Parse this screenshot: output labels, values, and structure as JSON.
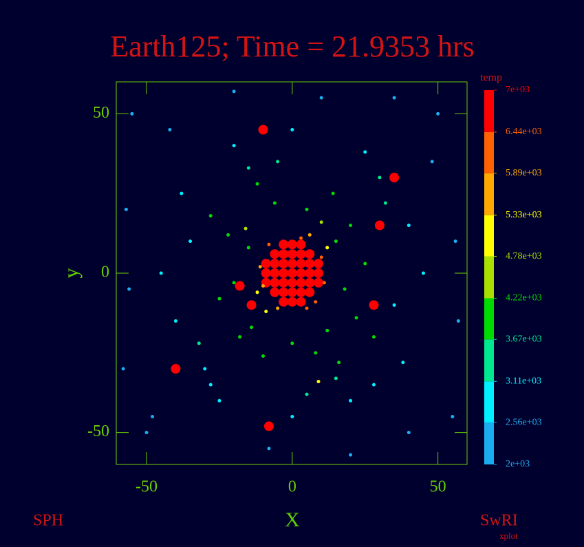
{
  "chart_data": {
    "type": "scatter",
    "title": "Earth125; Time = 21.9353 hrs",
    "x_label": "X",
    "y_label": "y",
    "footer_left": "SPH",
    "footer_right": "SwRI",
    "footer_right_sub": "xplot",
    "colorbar_label": "temp",
    "xlim": [
      -60.4,
      60
    ],
    "ylim": [
      -60,
      60
    ],
    "xticks": [
      -50,
      0,
      50
    ],
    "yticks": [
      -50,
      0,
      50
    ],
    "clim": [
      2000,
      7000
    ],
    "cticks": [
      {
        "value": 7000,
        "label": "7e+03"
      },
      {
        "value": 6440,
        "label": "6.44e+03"
      },
      {
        "value": 5890,
        "label": "5.89e+03"
      },
      {
        "value": 5330,
        "label": "5.33e+03"
      },
      {
        "value": 4780,
        "label": "4.78e+03"
      },
      {
        "value": 4220,
        "label": "4.22e+03"
      },
      {
        "value": 3670,
        "label": "3.67e+03"
      },
      {
        "value": 3110,
        "label": "3.11e+03"
      },
      {
        "value": 2560,
        "label": "2.56e+03"
      },
      {
        "value": 2000,
        "label": "2e+03"
      }
    ],
    "colormap": [
      "#1aaef0",
      "#00f0ff",
      "#00e890",
      "#00dc00",
      "#a8e000",
      "#ffff00",
      "#ffa800",
      "#ff6000",
      "#ff0000"
    ],
    "x": [
      -9,
      -9,
      -9,
      -6,
      -6,
      -6,
      -6,
      -6,
      -3,
      -3,
      -3,
      -3,
      -3,
      -3,
      -3,
      0,
      0,
      0,
      0,
      0,
      0,
      0,
      3,
      3,
      3,
      3,
      3,
      3,
      3,
      6,
      6,
      6,
      6,
      6,
      9,
      9,
      9,
      10,
      -10,
      11,
      -11,
      5,
      -5,
      8,
      -8,
      3,
      -12,
      12,
      -9,
      6,
      15,
      -15,
      18,
      -20,
      12,
      -14,
      5,
      -6,
      20,
      -22,
      22,
      -18,
      0,
      8,
      -25,
      25,
      14,
      -12,
      -10,
      16,
      -28,
      28,
      10,
      -16,
      30,
      -30,
      35,
      -35,
      -5,
      5,
      40,
      -40,
      20,
      -20,
      -38,
      38,
      25,
      -25,
      45,
      -45,
      0,
      0,
      -32,
      32,
      15,
      -15,
      -28,
      28,
      -55,
      55,
      -50,
      50,
      -57,
      57,
      -20,
      20,
      -58,
      48,
      -42,
      40,
      10,
      -8,
      56,
      -56,
      -48,
      35,
      -14,
      -8,
      -40,
      35,
      -18,
      30,
      -10,
      28,
      9
    ],
    "y": [
      -3,
      0,
      3,
      -6,
      -3,
      0,
      3,
      6,
      -9,
      -6,
      -3,
      0,
      3,
      6,
      9,
      -9,
      -6,
      -3,
      0,
      3,
      6,
      9,
      -9,
      -6,
      -3,
      0,
      3,
      6,
      9,
      -6,
      -3,
      0,
      3,
      6,
      -3,
      0,
      3,
      5,
      -4,
      -3,
      2,
      -11,
      -11,
      -9,
      9,
      11,
      -6,
      8,
      -12,
      12,
      10,
      8,
      -5,
      -3,
      -18,
      -17,
      20,
      22,
      15,
      12,
      -14,
      -20,
      -22,
      -25,
      -8,
      3,
      25,
      28,
      -26,
      -28,
      18,
      -20,
      16,
      14,
      30,
      -30,
      -10,
      10,
      35,
      -38,
      15,
      -15,
      -40,
      40,
      25,
      -28,
      38,
      -40,
      0,
      0,
      45,
      -45,
      -22,
      22,
      -33,
      33,
      -35,
      -35,
      50,
      -45,
      -50,
      50,
      20,
      -15,
      57,
      -57,
      -30,
      35,
      45,
      -50,
      55,
      -55,
      10,
      -5,
      -45,
      55,
      -10,
      -48,
      -30,
      30,
      -4,
      15,
      45,
      -10,
      -34
    ],
    "temp": [
      6900,
      6900,
      6900,
      6900,
      6900,
      6900,
      6900,
      6900,
      6900,
      6900,
      6900,
      6900,
      6900,
      6900,
      6900,
      6900,
      6900,
      6900,
      6900,
      6900,
      6900,
      6900,
      6900,
      6900,
      6900,
      6900,
      6900,
      6900,
      6900,
      6900,
      6900,
      6900,
      6900,
      6900,
      6900,
      6900,
      6900,
      6100,
      5600,
      6200,
      5500,
      6000,
      5400,
      6300,
      6100,
      6000,
      5100,
      5000,
      4900,
      5700,
      4000,
      3900,
      3800,
      4100,
      3900,
      4000,
      3800,
      4200,
      3700,
      3800,
      3900,
      3700,
      3800,
      3900,
      3700,
      3800,
      3700,
      3700,
      3900,
      3700,
      3700,
      3700,
      4300,
      4500,
      3200,
      3000,
      3100,
      3000,
      3300,
      3200,
      2900,
      2900,
      3000,
      3100,
      3000,
      2900,
      2800,
      2800,
      2800,
      2800,
      2700,
      2800,
      3300,
      3300,
      3400,
      3400,
      3000,
      3000,
      2300,
      2300,
      2200,
      2200,
      2400,
      2400,
      2300,
      2300,
      2200,
      2300,
      2400,
      2300,
      2200,
      2300,
      2400,
      2400,
      2400,
      2200,
      6800,
      6800,
      6600,
      6700,
      6800,
      6600,
      6900,
      6700,
      4900
    ]
  }
}
